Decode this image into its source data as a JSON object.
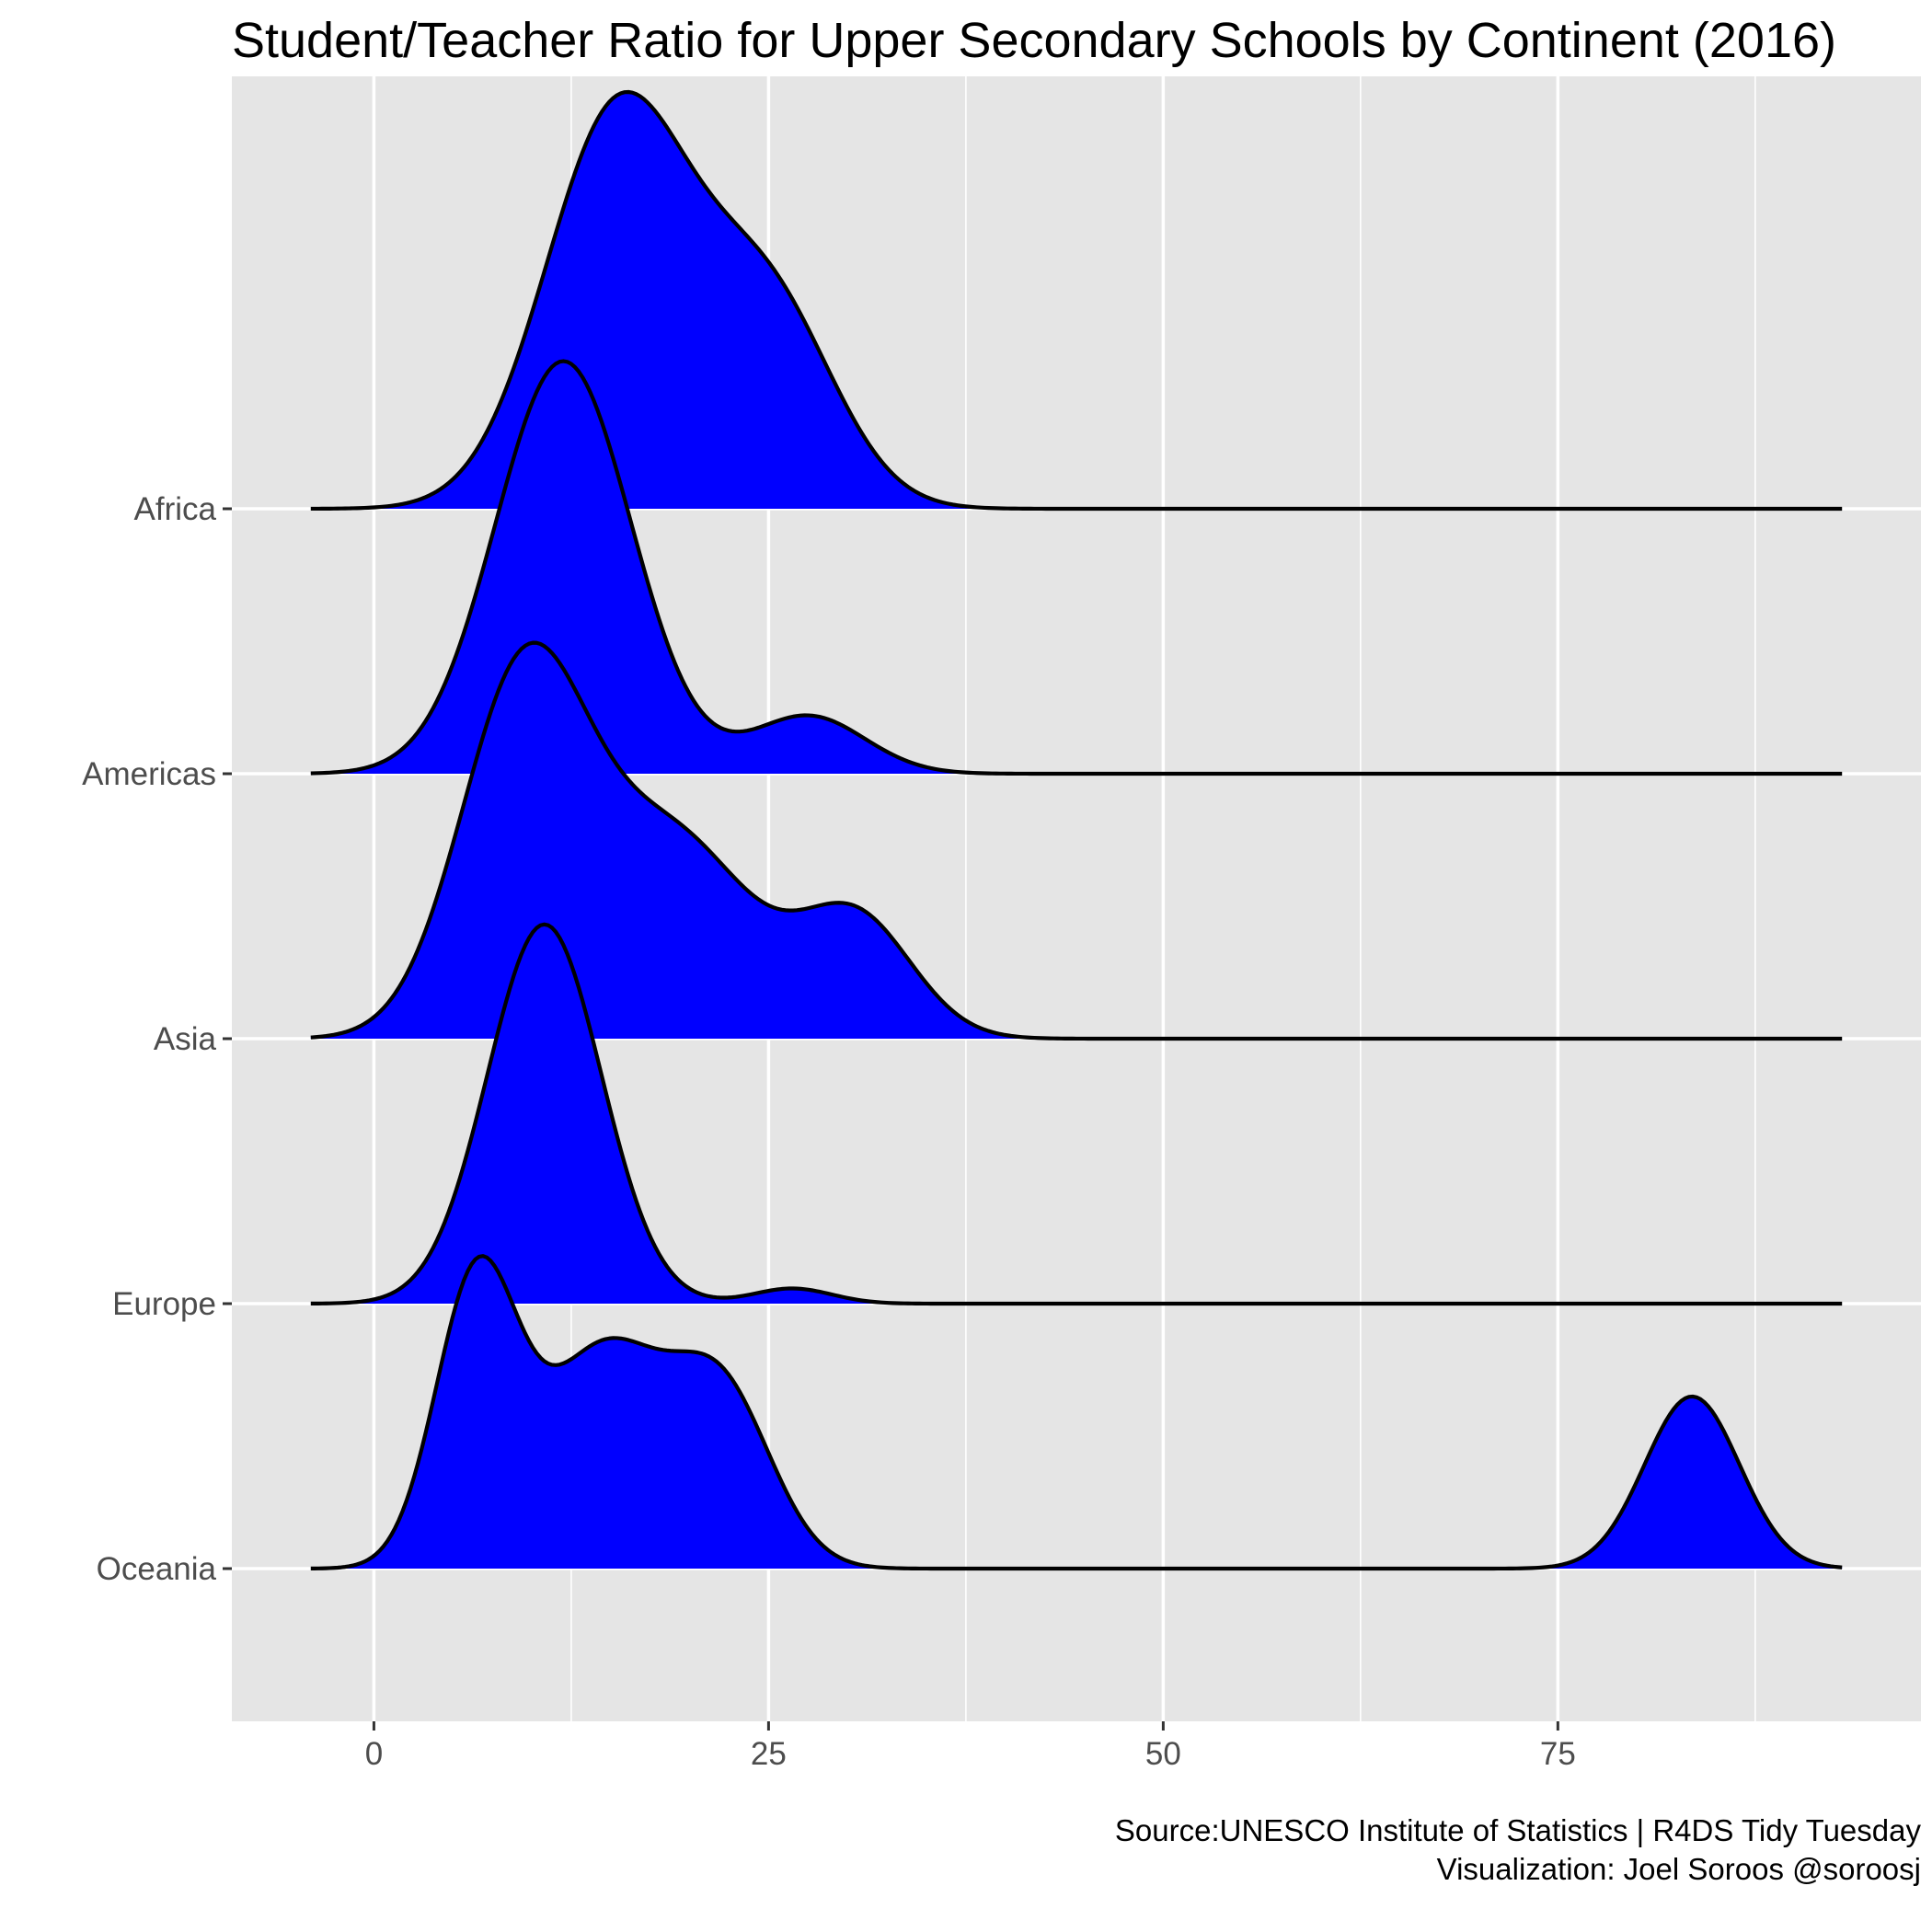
{
  "chart_data": {
    "type": "ridgeline",
    "title": "Student/Teacher Ratio for Upper Secondary Schools by Continent (2016)",
    "caption_lines": [
      "Source:UNESCO Institute of Statistics  |  R4DS Tidy Tuesday",
      "Visualization: Joel Soroos @soroosj"
    ],
    "xlabel": "",
    "ylabel": "",
    "x_ticks": [
      0,
      25,
      50,
      75
    ],
    "x_tick_labels": [
      "0",
      "25",
      "50",
      "75"
    ],
    "xlim": [
      -9,
      98
    ],
    "density_range": [
      -4,
      93
    ],
    "fill_color": "#0000ff",
    "line_color": "#000000",
    "panel_color": "#e5e5e5",
    "grid_color": "#ffffff",
    "grid": true,
    "legend": "none",
    "series": [
      {
        "name": "Africa",
        "label": "Africa",
        "components": [
          {
            "mean": 15.5,
            "sd": 4.6,
            "weight": 1.0
          },
          {
            "mean": 25.0,
            "sd": 4.2,
            "weight": 0.5
          }
        ]
      },
      {
        "name": "Americas",
        "label": "Americas",
        "components": [
          {
            "mean": 12.0,
            "sd": 4.3,
            "weight": 1.0
          },
          {
            "mean": 27.5,
            "sd": 3.6,
            "weight": 0.14
          }
        ]
      },
      {
        "name": "Asia",
        "label": "Asia",
        "components": [
          {
            "mean": 9.5,
            "sd": 4.0,
            "weight": 1.0
          },
          {
            "mean": 19.0,
            "sd": 5.0,
            "weight": 0.55
          },
          {
            "mean": 30.5,
            "sd": 3.6,
            "weight": 0.33
          }
        ]
      },
      {
        "name": "Europe",
        "label": "Europe",
        "components": [
          {
            "mean": 10.8,
            "sd": 3.6,
            "weight": 1.0
          },
          {
            "mean": 26.5,
            "sd": 2.5,
            "weight": 0.04
          }
        ]
      },
      {
        "name": "Oceania",
        "label": "Oceania",
        "components": [
          {
            "mean": 6.5,
            "sd": 2.6,
            "weight": 1.0
          },
          {
            "mean": 14.5,
            "sd": 3.8,
            "weight": 0.75
          },
          {
            "mean": 22.0,
            "sd": 3.2,
            "weight": 0.6
          },
          {
            "mean": 83.5,
            "sd": 3.0,
            "weight": 0.6
          }
        ]
      }
    ],
    "peak_height_ratio": [
      1.0,
      0.99,
      0.95,
      0.91,
      0.75
    ]
  }
}
